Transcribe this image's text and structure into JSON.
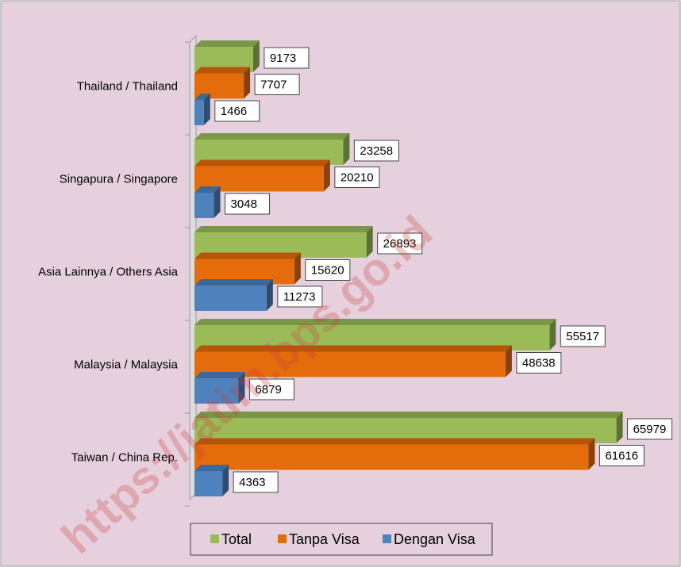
{
  "chart_data": {
    "type": "bar",
    "orientation": "horizontal",
    "categories": [
      "Thailand / Thailand",
      "Singapura / Singapore",
      "Asia Lainnya / Others Asia",
      "Malaysia / Malaysia",
      "Taiwan / China Rep."
    ],
    "series": [
      {
        "name": "Total",
        "color": "#9bbb59",
        "values": [
          9173,
          23258,
          26893,
          55517,
          65979
        ]
      },
      {
        "name": "Tanpa Visa",
        "color": "#e46c0a",
        "values": [
          7707,
          20210,
          15620,
          48638,
          61616
        ]
      },
      {
        "name": "Dengan Visa",
        "color": "#4f81bd",
        "values": [
          1466,
          3048,
          11273,
          6879,
          4363
        ]
      }
    ],
    "xlim": [
      0,
      70000
    ],
    "legend": "bottom",
    "watermark": "https://jatim.bps.go.id"
  }
}
